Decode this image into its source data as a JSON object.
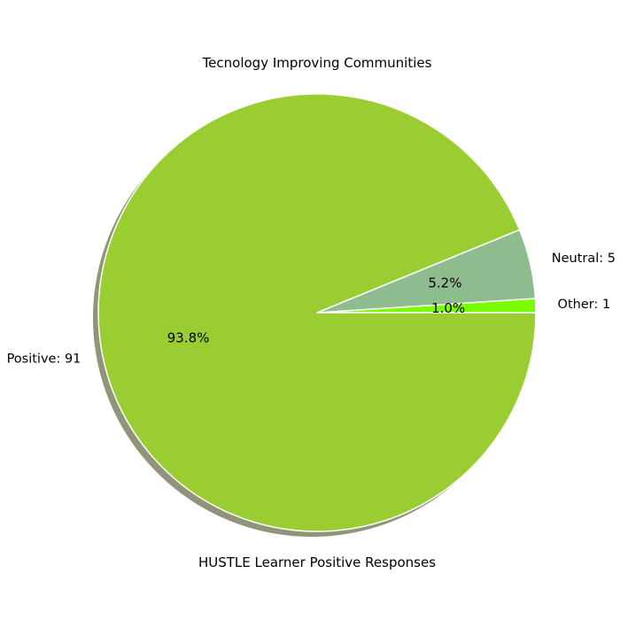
{
  "chart_data": {
    "type": "pie",
    "title": "Tecnology Improving Communities",
    "xlabel": "HUSTLE Learner Positive Responses",
    "slices": [
      {
        "label": "Other: 1",
        "value": 1,
        "percent": "1.0%",
        "color": "#7CFC00"
      },
      {
        "label": "Neutral: 5",
        "value": 5,
        "percent": "5.2%",
        "color": "#8FBC8F"
      },
      {
        "label": "Positive: 91",
        "value": 91,
        "percent": "93.8%",
        "color": "#9ACD32"
      }
    ],
    "shadow": true,
    "start_angle": 0,
    "direction": "counterclockwise"
  }
}
